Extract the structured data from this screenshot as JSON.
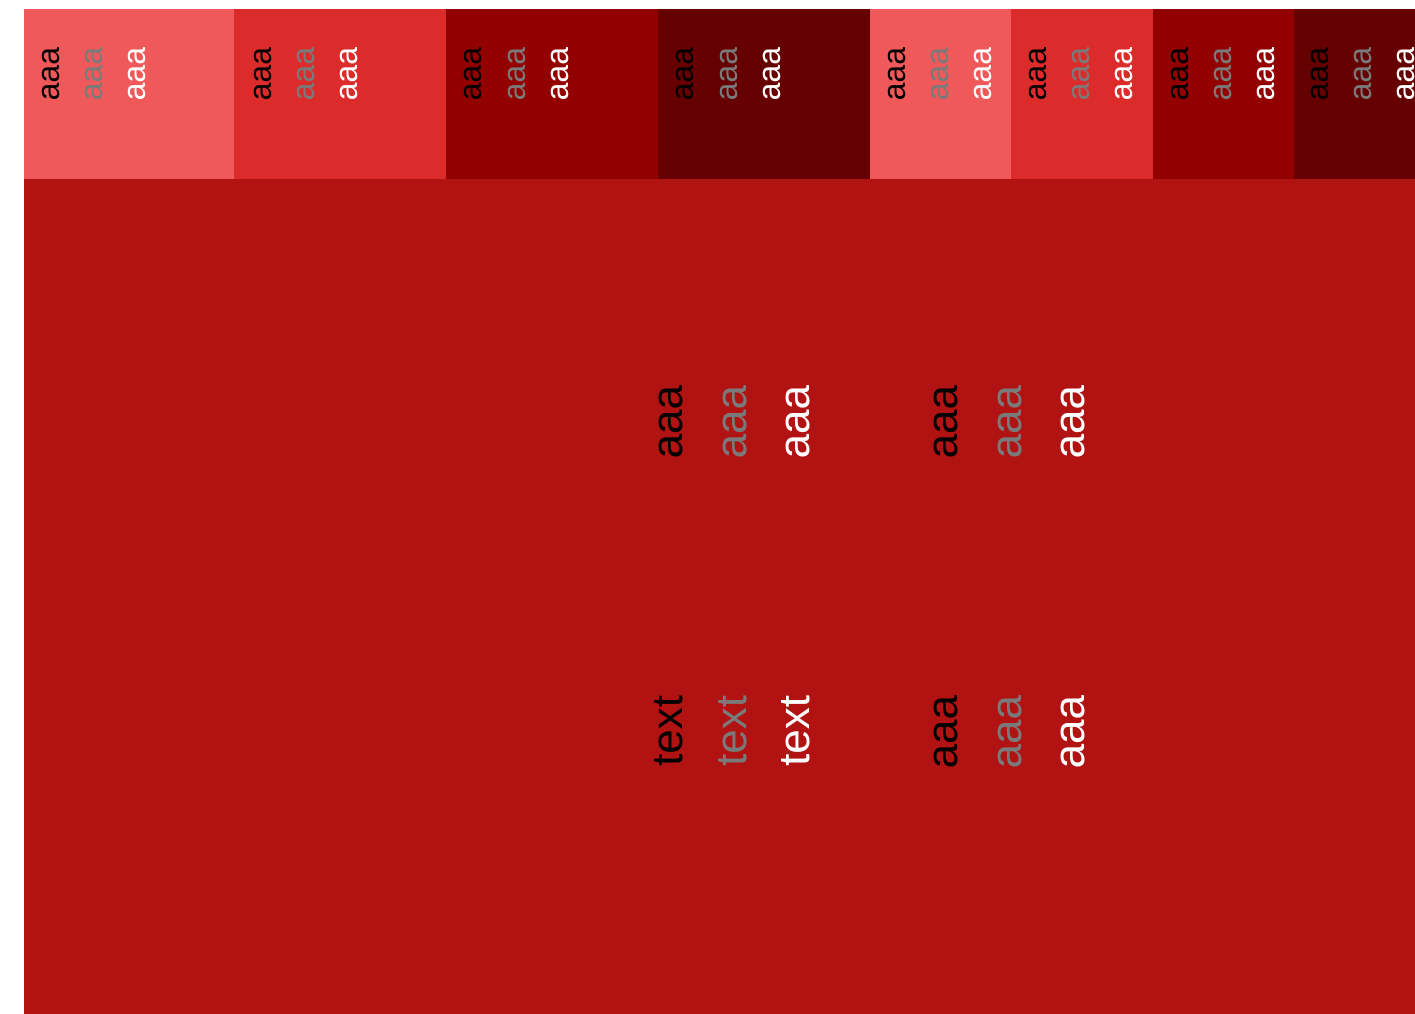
{
  "colors": {
    "page_background": "#ffffff",
    "canvas_background": "#b11212",
    "swatches": [
      "#ef5959",
      "#dc2b2b",
      "#930000",
      "#660000",
      "#ef5959",
      "#dc2b2b",
      "#930000",
      "#660000"
    ],
    "text_black": "#000000",
    "text_gray": "#7a7a7a",
    "text_white": "#ffffff"
  },
  "swatches": [
    {
      "black": "aaa",
      "gray": "aaa",
      "white": "aaa"
    },
    {
      "black": "aaa",
      "gray": "aaa",
      "white": "aaa"
    },
    {
      "black": "aaa",
      "gray": "aaa",
      "white": "aaa"
    },
    {
      "black": "aaa",
      "gray": "aaa",
      "white": "aaa"
    },
    {
      "black": "aaa",
      "gray": "aaa",
      "white": "aaa"
    },
    {
      "black": "aaa",
      "gray": "aaa",
      "white": "aaa"
    },
    {
      "black": "aaa",
      "gray": "aaa",
      "white": "aaa"
    },
    {
      "black": "aaa",
      "gray": "aaa",
      "white": "aaa"
    }
  ],
  "samples": {
    "row1_left": {
      "black": "aaa",
      "gray": "aaa",
      "white": "aaa"
    },
    "row1_right": {
      "black": "aaa",
      "gray": "aaa",
      "white": "aaa"
    },
    "row2_left": {
      "black": "text",
      "gray": "text",
      "white": "text"
    },
    "row2_right": {
      "black": "aaa",
      "gray": "aaa",
      "white": "aaa"
    }
  }
}
